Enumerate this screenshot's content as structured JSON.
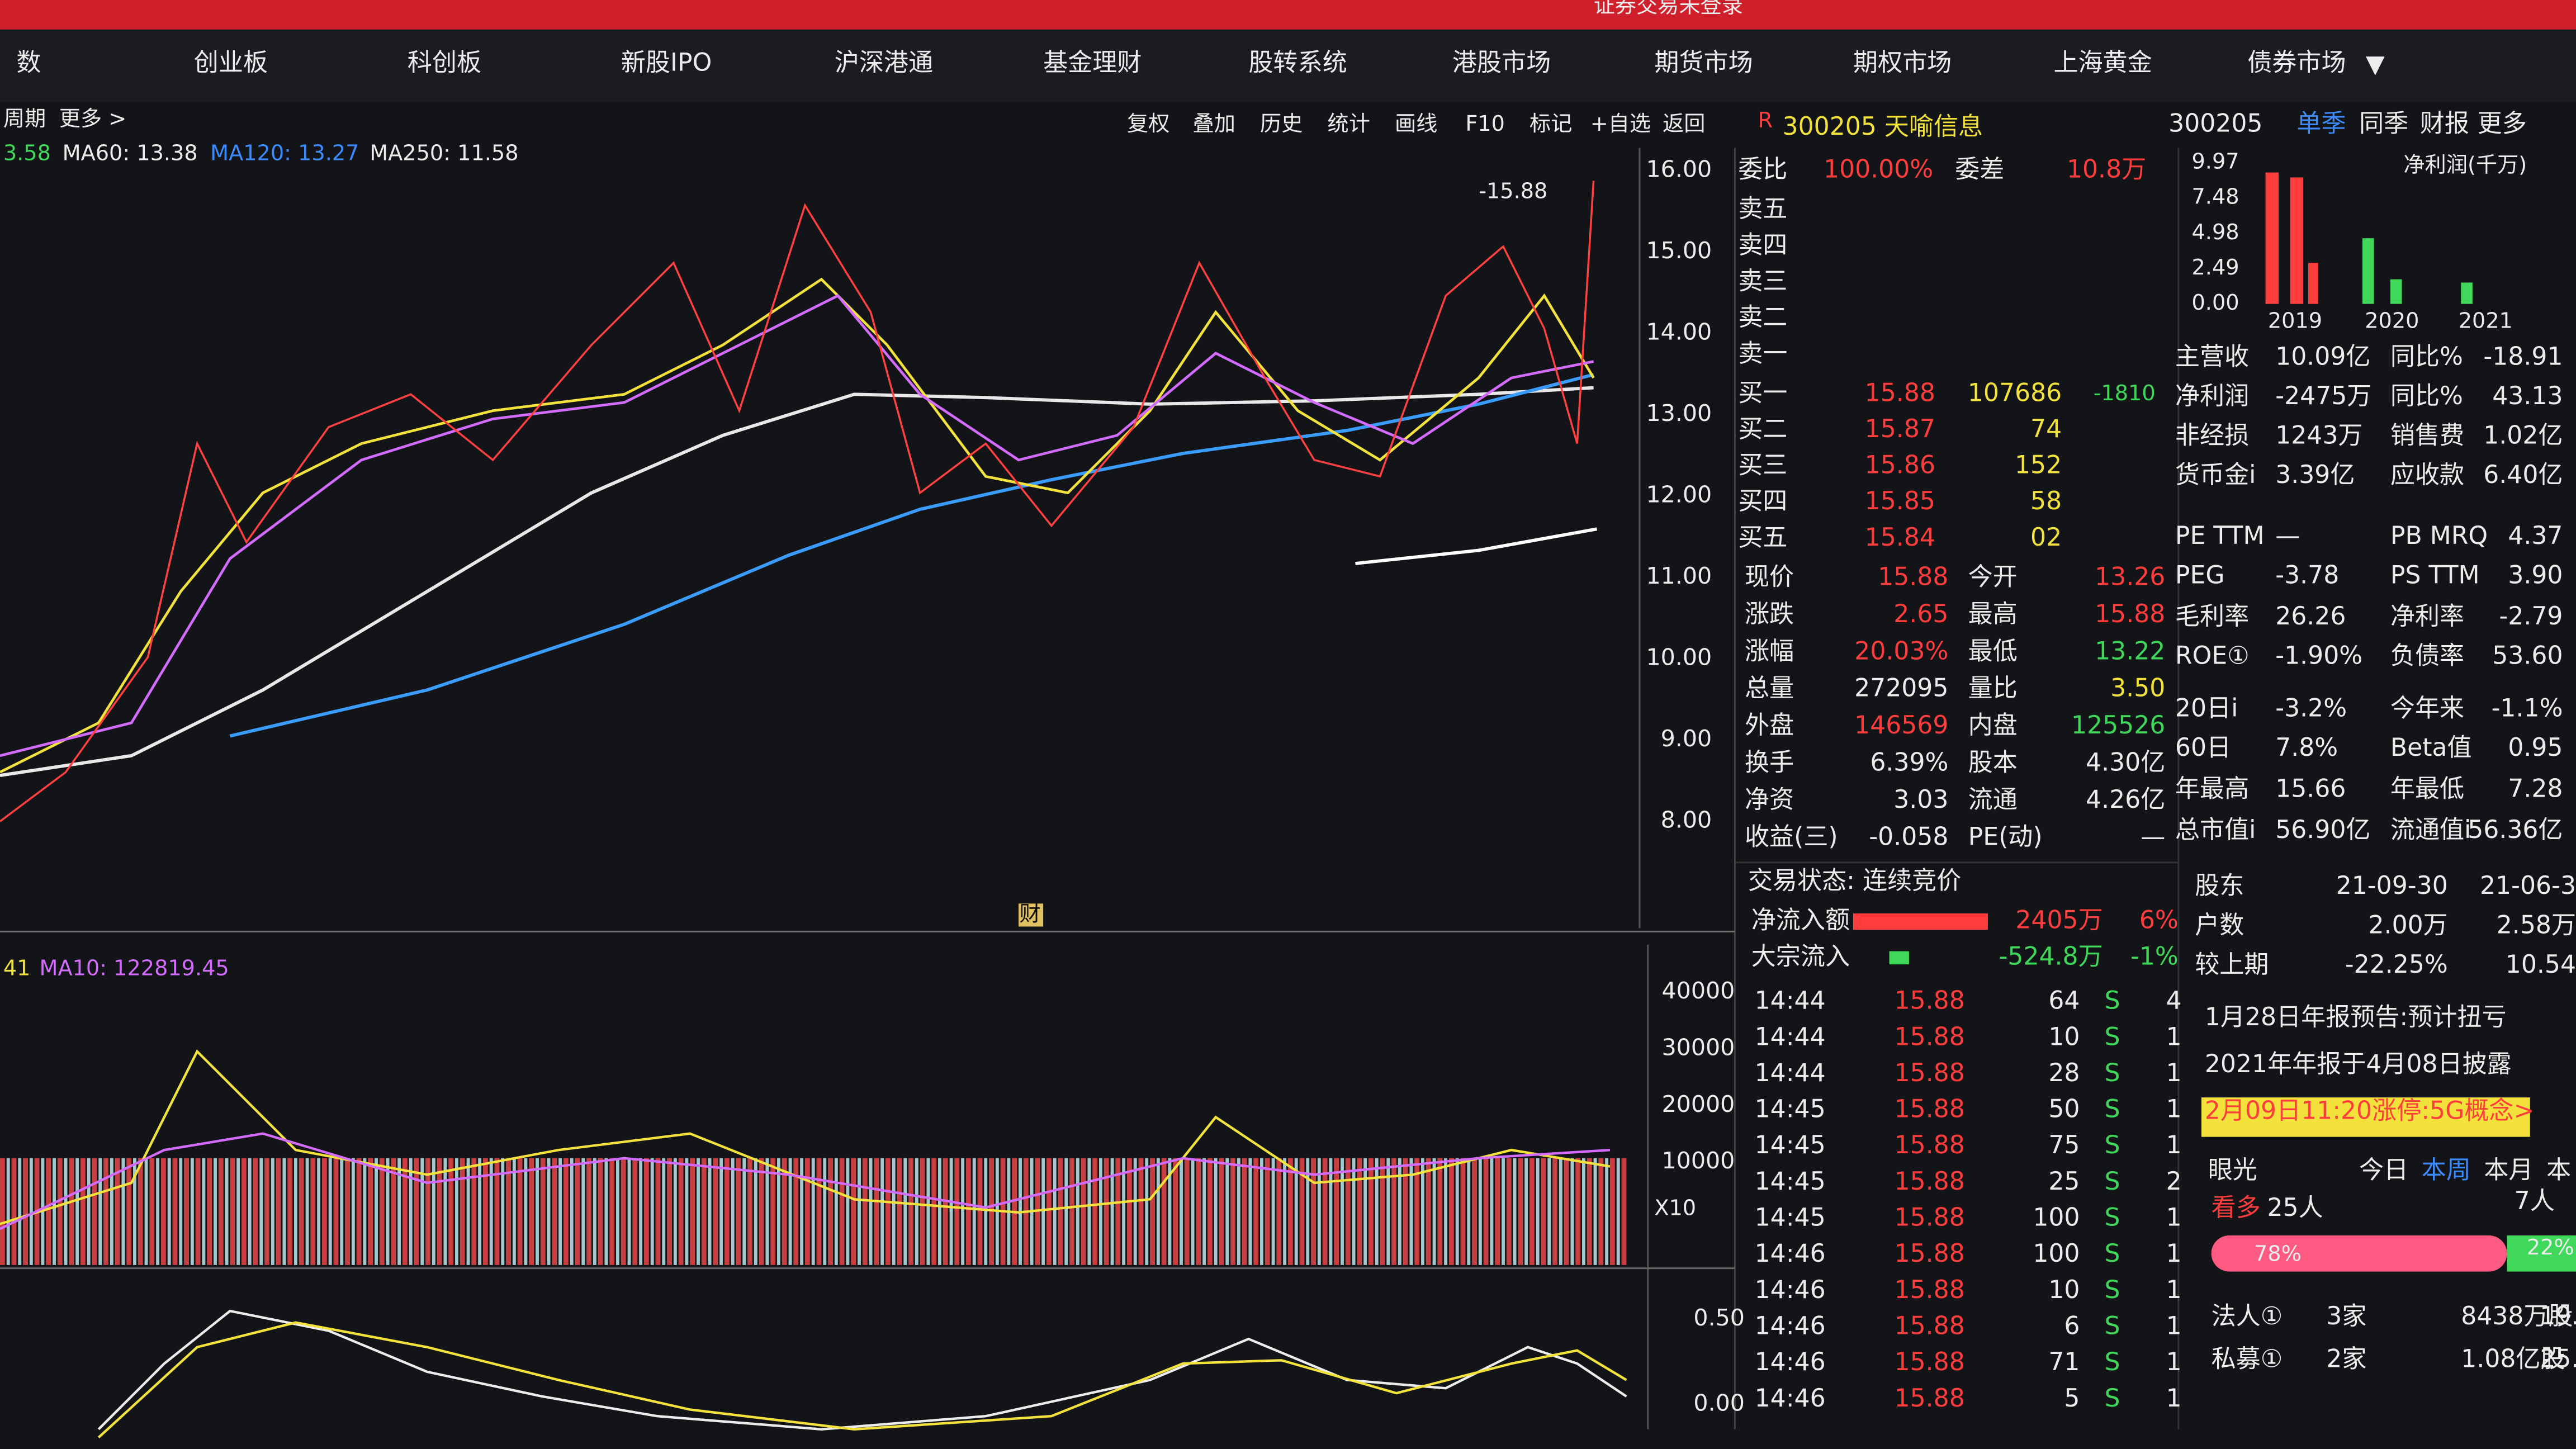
{
  "window_title": "证券交易未登录",
  "top_tabs": [
    "数",
    "创业板",
    "科创板",
    "新股IPO",
    "沪深港通",
    "基金理财",
    "股转系统",
    "港股市场",
    "期货市场",
    "期权市场",
    "上海黄金",
    "债券市场"
  ],
  "period_bar": [
    "周期",
    "更多 >"
  ],
  "tools": [
    "复权",
    "叠加",
    "历史",
    "统计",
    "画线",
    "F10",
    "标记",
    "+自选",
    "返回"
  ],
  "ma_legend": [
    "3.58",
    "MA60: 13.38",
    "MA120: 13.27",
    "MA250: 11.58"
  ],
  "price_axis": [
    "16.00",
    "15.00",
    "14.00",
    "13.00",
    "12.00",
    "11.00",
    "10.00",
    "9.00",
    "8.00"
  ],
  "price_marker": "-15.88",
  "event_badge": "财",
  "volume_legend": [
    "41",
    "MA10: 122819.45"
  ],
  "volume_axis": [
    "40000",
    "30000",
    "20000",
    "10000"
  ],
  "volume_scale": "X10",
  "macd_axis": [
    "0.50",
    "0.00"
  ],
  "quote": {
    "flag": "R",
    "title": "300205 天喻信息"
  },
  "order_book": {
    "summary": [
      "委比",
      "100.00%",
      "委差",
      "10.8万"
    ],
    "asks": [
      "卖五",
      "卖四",
      "卖三",
      "卖二",
      "卖一"
    ],
    "bids": [
      [
        "买一",
        "15.88",
        "107686",
        "-1810"
      ],
      [
        "买二",
        "15.87",
        "74"
      ],
      [
        "买三",
        "15.86",
        "152"
      ],
      [
        "买四",
        "15.85",
        "58"
      ],
      [
        "买五",
        "15.84",
        "02"
      ]
    ]
  },
  "quote_stats": [
    [
      "现价",
      "15.88",
      "今开",
      "13.26"
    ],
    [
      "涨跌",
      "2.65",
      "最高",
      "15.88"
    ],
    [
      "涨幅",
      "20.03%",
      "最低",
      "13.22"
    ],
    [
      "总量",
      "272095",
      "量比",
      "3.50"
    ],
    [
      "外盘",
      "146569",
      "内盘",
      "125526"
    ],
    [
      "换手",
      "6.39%",
      "股本",
      "4.30亿"
    ],
    [
      "净资",
      "3.03",
      "流通",
      "4.26亿"
    ],
    [
      "收益(三)",
      "-0.058",
      "PE(动)",
      "—"
    ]
  ],
  "status": "交易状态: 连续竞价",
  "fund_flow": [
    [
      "净流入额",
      "2405万",
      "6%"
    ],
    [
      "大宗流入",
      "-524.8万",
      "-1%"
    ]
  ],
  "trades": [
    [
      "14:44",
      "15.88",
      "64",
      "S",
      "4"
    ],
    [
      "14:44",
      "15.88",
      "10",
      "S",
      "1"
    ],
    [
      "14:44",
      "15.88",
      "28",
      "S",
      "1"
    ],
    [
      "14:45",
      "15.88",
      "50",
      "S",
      "1"
    ],
    [
      "14:45",
      "15.88",
      "75",
      "S",
      "1"
    ],
    [
      "14:45",
      "15.88",
      "25",
      "S",
      "2"
    ],
    [
      "14:45",
      "15.88",
      "100",
      "S",
      "1"
    ],
    [
      "14:46",
      "15.88",
      "100",
      "S",
      "1"
    ],
    [
      "14:46",
      "15.88",
      "10",
      "S",
      "1"
    ],
    [
      "14:46",
      "15.88",
      "6",
      "S",
      "1"
    ],
    [
      "14:46",
      "15.88",
      "71",
      "S",
      "1"
    ],
    [
      "14:46",
      "15.88",
      "5",
      "S",
      "1"
    ]
  ],
  "f10_header": {
    "code": "300205",
    "tabs": [
      "单季",
      "同季",
      "财报",
      "更多"
    ]
  },
  "mini_chart": {
    "title": "净利润(千万)",
    "yticks": [
      "9.97",
      "7.48",
      "4.98",
      "2.49",
      "0.00"
    ],
    "years": [
      "2019",
      "2020",
      "2021"
    ]
  },
  "fundamentals": [
    [
      "主营收",
      "10.09亿",
      "同比%",
      "-18.91"
    ],
    [
      "净利润",
      "-2475万",
      "同比%",
      "43.13"
    ],
    [
      "非经损",
      "1243万",
      "销售费",
      "1.02亿"
    ],
    [
      "货币金i",
      "3.39亿",
      "应收款",
      "6.40亿"
    ],
    [
      "PE TTM",
      "—",
      "PB MRQ",
      "4.37"
    ],
    [
      "PEG",
      "-3.78",
      "PS TTM",
      "3.90"
    ],
    [
      "毛利率",
      "26.26",
      "净利率",
      "-2.79"
    ],
    [
      "ROE①",
      "-1.90%",
      "负债率",
      "53.60"
    ],
    [
      "20日i",
      "-3.2%",
      "今年来",
      "-1.1%"
    ],
    [
      "60日",
      "7.8%",
      "Beta值",
      "0.95"
    ],
    [
      "年最高",
      "15.66",
      "年最低",
      "7.28"
    ],
    [
      "总市值i",
      "56.90亿",
      "流通值i",
      "56.36亿"
    ]
  ],
  "holders_table": [
    [
      "股东",
      "21-09-30",
      "21-06-3"
    ],
    [
      "户数",
      "2.00万",
      "2.58万"
    ],
    [
      "较上期",
      "-22.25%",
      "10.54"
    ]
  ],
  "notes": [
    "1月28日年报预告:预计扭亏",
    "2021年年报于4月08日披露",
    "2月09日11:20涨停:5G概念>"
  ],
  "sentiment": {
    "header": [
      "眼光",
      "今日",
      "本周",
      "本月",
      "本"
    ],
    "row": [
      "看多",
      "25人",
      "7人"
    ],
    "bar": [
      "78%",
      "22%"
    ]
  },
  "institutions": [
    [
      "法人①",
      "3家",
      "8438万股",
      "19."
    ],
    [
      "私募①",
      "2家",
      "1.08亿股",
      "25."
    ]
  ]
}
